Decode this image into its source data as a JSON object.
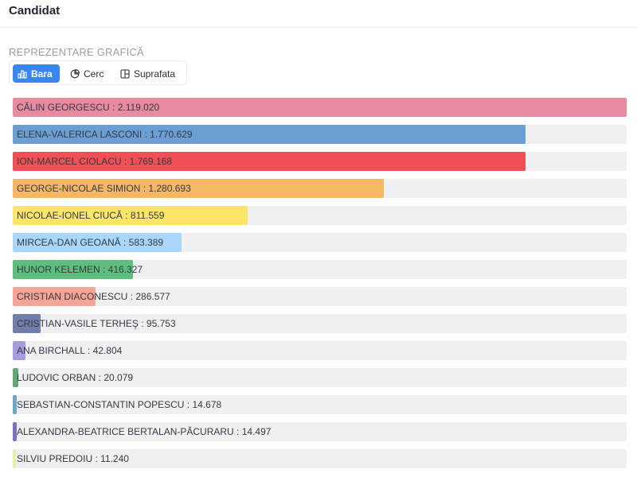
{
  "header": {
    "title": "Candidat"
  },
  "section": {
    "label": "REPREZENTARE GRAFICĂ"
  },
  "tabs": [
    {
      "label": "Bara",
      "icon": "bar-chart-icon",
      "active": true
    },
    {
      "label": "Cerc",
      "icon": "pie-chart-icon",
      "active": false
    },
    {
      "label": "Suprafata",
      "icon": "area-layout-icon",
      "active": false
    }
  ],
  "chart_data": {
    "type": "bar",
    "orientation": "horizontal",
    "categories": [
      "CĂLIN GEORGESCU",
      "ELENA-VALERICA LASCONI",
      "ION-MARCEL CIOLACU",
      "GEORGE-NICOLAE SIMION",
      "NICOLAE-IONEL CIUCĂ",
      "MIRCEA-DAN GEOANĂ",
      "HUNOR KELEMEN",
      "CRISTIAN DIACONESCU",
      "CRISTIAN-VASILE TERHEŞ",
      "ANA BIRCHALL",
      "LUDOVIC ORBAN",
      "SEBASTIAN-CONSTANTIN POPESCU",
      "ALEXANDRA-BEATRICE BERTALAN-PĂCURARU",
      "SILVIU PREDOIU"
    ],
    "values": [
      2119020,
      1770629,
      1769168,
      1280693,
      811559,
      583389,
      416327,
      286577,
      95753,
      42804,
      20079,
      14678,
      14497,
      11240
    ],
    "value_labels": [
      "2.119.020",
      "1.770.629",
      "1.769.168",
      "1.280.693",
      "811.559",
      "583.389",
      "416.327",
      "286.577",
      "95.753",
      "42.804",
      "20.079",
      "14.678",
      "14.497",
      "11.240"
    ],
    "colors": [
      "#e98ba0",
      "#6b9fd4",
      "#ef4f55",
      "#f5b763",
      "#fde56a",
      "#a9d6fb",
      "#5dbe7e",
      "#f5a598",
      "#717ea8",
      "#a79be0",
      "#63a870",
      "#6fa6c8",
      "#8070bc",
      "#e8edaa"
    ],
    "track_color": "#f0f0f0"
  }
}
